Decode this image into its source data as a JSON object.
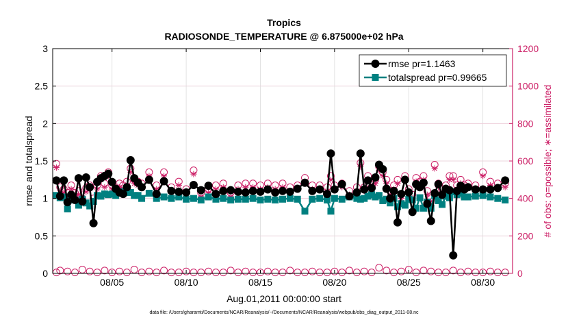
{
  "chart_data": {
    "type": "line",
    "title": "Tropics",
    "subtitle": "RADIOSONDE_TEMPERATURE @ 6.875000e+02 hPa",
    "xlabel": "Aug.01,2011 00:00:00 start",
    "ylabel_left": "rmse and totalspread",
    "ylabel_right": "# of obs: o=possible; ∗=assimilated",
    "xlim": [
      1,
      32
    ],
    "ylim_left": [
      0,
      3
    ],
    "ylim_right": [
      0,
      1200
    ],
    "x_ticks": [
      5,
      10,
      15,
      20,
      25,
      30
    ],
    "x_tick_labels": [
      "08/05",
      "08/10",
      "08/15",
      "08/20",
      "08/25",
      "08/30"
    ],
    "y_left_ticks": [
      "0",
      "0.5",
      "1",
      "1.5",
      "2",
      "2.5",
      "3"
    ],
    "y_right_ticks": [
      "0",
      "200",
      "400",
      "600",
      "800",
      "1000",
      "1200"
    ],
    "grid": true,
    "legend_position": "top-right",
    "colors": {
      "rmse": "#000000",
      "spread": "#008080",
      "obs": "#cc1f66"
    },
    "footer": "data file: /Users/gharamti/Documents/NCAR/Reanalysis/~/Documents/NCAR/Reanalysis/webpub/obs_diag_output_2011-08.nc",
    "series": [
      {
        "name": "rmse pr=1.1463",
        "axis": "left",
        "x": [
          1.25,
          1.5,
          1.75,
          2,
          2.25,
          2.5,
          2.75,
          3,
          3.25,
          3.5,
          3.75,
          4,
          4.25,
          4.5,
          4.75,
          5,
          5.25,
          5.5,
          5.75,
          6,
          6.25,
          6.5,
          6.75,
          7,
          7.5,
          8,
          8.5,
          9,
          9.5,
          10,
          10.5,
          11,
          11.5,
          12,
          12.5,
          13,
          13.5,
          14,
          14.5,
          15,
          15.5,
          16,
          16.5,
          17,
          17.5,
          18,
          18.5,
          19,
          19.5,
          19.75,
          20,
          20.5,
          21,
          21.5,
          21.75,
          22,
          22.25,
          22.5,
          22.75,
          23,
          23.25,
          23.5,
          23.75,
          24,
          24.25,
          24.5,
          24.75,
          25,
          25.25,
          25.5,
          25.75,
          26,
          26.25,
          26.5,
          26.75,
          27,
          27.25,
          27.5,
          27.75,
          28,
          28.25,
          28.5,
          28.75,
          29,
          29.5,
          30,
          30.5,
          31,
          31.5
        ],
        "values": [
          1.24,
          1.03,
          1.24,
          0.95,
          1.05,
          0.98,
          1.27,
          0.96,
          1.28,
          1.15,
          0.67,
          1.22,
          1.27,
          1.3,
          1.33,
          1.22,
          1.13,
          1.08,
          1.06,
          1.15,
          1.51,
          1.27,
          1.21,
          1.15,
          1.25,
          1.06,
          1.23,
          1.1,
          1.09,
          1.08,
          1.18,
          1.11,
          1.17,
          1.06,
          1.1,
          1.11,
          1.09,
          1.08,
          1.1,
          1.09,
          1.12,
          1.08,
          1.1,
          1.09,
          1.13,
          1.21,
          1.1,
          1.12,
          1.06,
          1.6,
          1.12,
          1.19,
          1.03,
          1.08,
          1.6,
          1.12,
          1.24,
          1.14,
          1.28,
          1.45,
          1.39,
          1.13,
          1.0,
          1.1,
          0.68,
          1.06,
          1.25,
          1.08,
          0.82,
          1.19,
          1.15,
          1.21,
          0.93,
          0.7,
          1.07,
          1.19,
          1.05,
          1.13,
          1.11,
          0.24,
          1.1,
          1.17,
          1.12,
          1.15,
          1.12,
          1.12,
          1.12,
          1.14,
          1.24
        ]
      },
      {
        "name": "totalspread pr=0.99665",
        "axis": "left",
        "x": [
          1.25,
          1.5,
          1.75,
          2,
          2.25,
          2.5,
          2.75,
          3,
          3.25,
          3.5,
          3.75,
          4,
          4.25,
          4.5,
          4.75,
          5,
          5.25,
          5.5,
          5.75,
          6,
          6.25,
          6.5,
          6.75,
          7,
          7.5,
          8,
          8.5,
          9,
          9.5,
          10,
          10.5,
          11,
          11.5,
          12,
          12.5,
          13,
          13.5,
          14,
          14.5,
          15,
          15.5,
          16,
          16.5,
          17,
          17.5,
          18,
          18.5,
          19,
          19.5,
          19.75,
          20,
          20.5,
          21,
          21.5,
          21.75,
          22,
          22.25,
          22.5,
          22.75,
          23,
          23.25,
          23.5,
          23.75,
          24,
          24.25,
          24.5,
          24.75,
          25,
          25.25,
          25.5,
          25.75,
          26,
          26.25,
          26.5,
          26.75,
          27,
          27.25,
          27.5,
          27.75,
          28,
          28.25,
          28.5,
          28.75,
          29,
          29.5,
          30,
          30.5,
          31,
          31.5
        ],
        "values": [
          1.04,
          1.01,
          1.02,
          0.86,
          1.01,
          0.98,
          0.91,
          0.99,
          0.94,
          0.9,
          0.96,
          1.04,
          1.03,
          1.06,
          1.05,
          1.06,
          1.04,
          1.07,
          1.09,
          1.08,
          1.08,
          1.04,
          1.04,
          1.0,
          1.07,
          1.0,
          1.02,
          1.0,
          1.02,
          0.99,
          1.0,
          0.98,
          1.02,
          0.99,
          1.0,
          0.98,
          0.99,
          0.99,
          1.0,
          0.98,
          0.99,
          0.98,
          0.99,
          1.0,
          0.99,
          0.83,
          0.99,
          1.0,
          0.98,
          0.83,
          1.0,
          0.99,
          1.02,
          1.0,
          0.99,
          1.0,
          1.03,
          1.05,
          1.02,
          1.04,
          0.97,
          0.99,
          0.94,
          1.0,
          0.89,
          0.93,
          0.91,
          0.99,
          0.98,
          0.87,
          1.01,
          0.87,
          0.95,
          0.87,
          1.04,
          0.97,
          0.92,
          1.03,
          1.01,
          1.09,
          1.05,
          1.07,
          1.02,
          1.02,
          1.03,
          1.04,
          1.02,
          1.0,
          0.98
        ]
      },
      {
        "name": "possible obs (o)",
        "axis": "right",
        "x": [
          1.25,
          1.5,
          1.75,
          2,
          2.25,
          2.5,
          2.75,
          3,
          3.25,
          3.5,
          3.75,
          4,
          4.25,
          4.5,
          4.75,
          5,
          5.25,
          5.5,
          5.75,
          6,
          6.25,
          6.5,
          6.75,
          7,
          7.5,
          8,
          8.5,
          9,
          9.5,
          10,
          10.5,
          11,
          11.5,
          12,
          12.5,
          13,
          13.5,
          14,
          14.5,
          15,
          15.5,
          16,
          16.5,
          17,
          17.5,
          18,
          18.5,
          19,
          19.5,
          19.75,
          20,
          20.5,
          21,
          21.5,
          21.75,
          22,
          22.25,
          22.5,
          22.75,
          23,
          23.25,
          23.5,
          23.75,
          24,
          24.25,
          24.5,
          24.75,
          25,
          25.25,
          25.5,
          25.75,
          26,
          26.25,
          26.5,
          26.75,
          27,
          27.25,
          27.5,
          27.75,
          28,
          28.25,
          28.5,
          28.75,
          29,
          29.5,
          30,
          30.5,
          31,
          31.5
        ],
        "values": [
          585,
          460,
          450,
          430,
          470,
          430,
          440,
          400,
          455,
          470,
          400,
          470,
          520,
          480,
          540,
          470,
          460,
          480,
          470,
          490,
          560,
          500,
          490,
          480,
          540,
          470,
          540,
          460,
          490,
          450,
          550,
          430,
          450,
          470,
          480,
          430,
          470,
          480,
          480,
          470,
          480,
          470,
          480,
          460,
          470,
          510,
          470,
          470,
          460,
          520,
          470,
          480,
          440,
          460,
          590,
          460,
          520,
          460,
          500,
          570,
          540,
          500,
          440,
          470,
          500,
          420,
          520,
          450,
          420,
          510,
          490,
          520,
          440,
          400,
          580,
          480,
          450,
          470,
          520,
          520,
          470,
          500,
          470,
          480,
          470,
          540,
          490,
          480,
          480
        ]
      },
      {
        "name": "assimilated obs (∗)",
        "axis": "right",
        "x": [
          1.25,
          1.5,
          1.75,
          2,
          2.25,
          2.5,
          2.75,
          3,
          3.25,
          3.5,
          3.75,
          4,
          4.25,
          4.5,
          4.75,
          5,
          5.25,
          5.5,
          5.75,
          6,
          6.25,
          6.5,
          6.75,
          7,
          7.5,
          8,
          8.5,
          9,
          9.5,
          10,
          10.5,
          11,
          11.5,
          12,
          12.5,
          13,
          13.5,
          14,
          14.5,
          15,
          15.5,
          16,
          16.5,
          17,
          17.5,
          18,
          18.5,
          19,
          19.5,
          19.75,
          20,
          20.5,
          21,
          21.5,
          21.75,
          22,
          22.25,
          22.5,
          22.75,
          23,
          23.25,
          23.5,
          23.75,
          24,
          24.25,
          24.5,
          24.75,
          25,
          25.25,
          25.5,
          25.75,
          26,
          26.25,
          26.5,
          26.75,
          27,
          27.25,
          27.5,
          27.75,
          28,
          28.25,
          28.5,
          28.75,
          29,
          29.5,
          30,
          30.5,
          31,
          31.5
        ],
        "values": [
          565,
          440,
          430,
          410,
          450,
          410,
          420,
          385,
          435,
          450,
          385,
          450,
          500,
          460,
          520,
          450,
          440,
          460,
          450,
          470,
          540,
          480,
          470,
          460,
          520,
          450,
          520,
          440,
          470,
          430,
          530,
          410,
          430,
          450,
          460,
          410,
          450,
          460,
          460,
          450,
          460,
          450,
          460,
          440,
          450,
          490,
          450,
          450,
          440,
          500,
          450,
          460,
          420,
          440,
          570,
          440,
          500,
          440,
          480,
          550,
          520,
          480,
          420,
          450,
          480,
          400,
          500,
          430,
          400,
          490,
          470,
          500,
          420,
          385,
          560,
          460,
          430,
          450,
          500,
          500,
          450,
          480,
          450,
          460,
          450,
          520,
          470,
          460,
          460
        ]
      },
      {
        "name": "rejected obs (o, near zero)",
        "axis": "right",
        "x": [
          1.25,
          1.5,
          2,
          2.5,
          3,
          3.5,
          4,
          4.5,
          5,
          5.5,
          6,
          6.5,
          7,
          7.5,
          8,
          8.5,
          9,
          9.5,
          10,
          10.5,
          11,
          11.5,
          12,
          12.5,
          13,
          13.5,
          14,
          14.5,
          15,
          15.5,
          16,
          16.5,
          17,
          17.5,
          18,
          18.5,
          19,
          19.5,
          20,
          20.5,
          21,
          21.5,
          22,
          22.5,
          23,
          23.5,
          24,
          24.5,
          25,
          25.5,
          26,
          26.5,
          27,
          27.5,
          28,
          28.5,
          29,
          29.5,
          30,
          30.5,
          31,
          31.5
        ],
        "values": [
          5,
          15,
          10,
          5,
          20,
          10,
          5,
          15,
          5,
          10,
          5,
          20,
          5,
          10,
          5,
          15,
          5,
          5,
          10,
          5,
          5,
          10,
          5,
          5,
          15,
          5,
          10,
          5,
          5,
          10,
          5,
          5,
          15,
          5,
          5,
          10,
          5,
          5,
          10,
          5,
          15,
          5,
          10,
          5,
          30,
          15,
          5,
          10,
          20,
          5,
          15,
          10,
          5,
          5,
          15,
          5,
          10,
          5,
          5,
          10,
          5,
          5
        ]
      }
    ]
  }
}
